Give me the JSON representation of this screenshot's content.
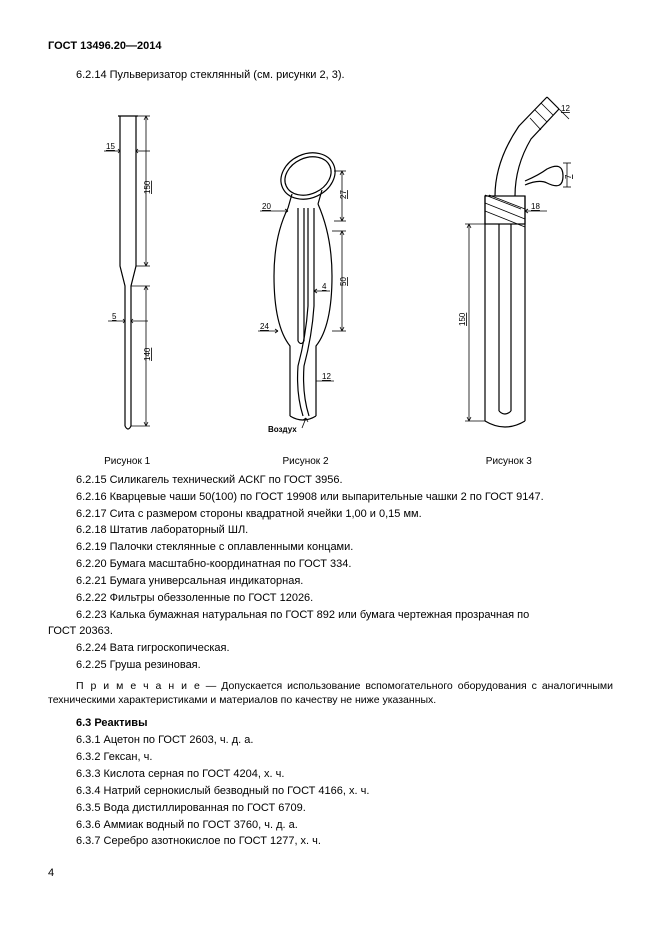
{
  "doc_header": "ГОСТ 13496.20—2014",
  "intro_clause": "6.2.14 Пульверизатор стеклянный (см. рисунки 2, 3).",
  "figures": {
    "fig1": {
      "caption": "Рисунок 1",
      "dims": {
        "d_top": "15",
        "h_top": "150",
        "d_bot": "5",
        "h_bot": "140"
      }
    },
    "fig2": {
      "caption": "Рисунок 2",
      "dims": {
        "d1": "20",
        "d2": "24",
        "d3": "12",
        "d4": "4",
        "h1": "27",
        "h2": "50",
        "air_label": "Воздух"
      }
    },
    "fig3": {
      "caption": "Рисунок 3",
      "dims": {
        "d_in": "18",
        "h": "150",
        "d_top": "12",
        "side": "7"
      }
    }
  },
  "clauses_upper": [
    "6.2.15 Силикагель технический АСКГ по ГОСТ 3956.",
    "6.2.16 Кварцевые чаши 50(100) по ГОСТ 19908 или выпарительные чашки 2 по ГОСТ 9147.",
    "6.2.17 Сита с размером стороны квадратной ячейки 1,00 и 0,15 мм.",
    "6.2.18 Штатив лабораторный ШЛ.",
    "6.2.19 Палочки стеклянные с оплавленными концами.",
    "6.2.20 Бумага масштабно-координатная по ГОСТ 334.",
    "6.2.21 Бумага универсальная индикаторная.",
    "6.2.22 Фильтры обеззоленные по ГОСТ 12026.",
    "6.2.23 Калька бумажная натуральная по ГОСТ 892 или бумага чертежная прозрачная по ГОСТ 20363.",
    "6.2.24 Вата гигроскопическая.",
    "6.2.25 Груша резиновая."
  ],
  "note_label": "П р и м е ч а н и е",
  "note_text": " — Допускается использование вспомогательного оборудования с аналогичными техническими характеристиками и материалов по качеству не ниже указанных.",
  "section63_title": "6.3 Реактивы",
  "clauses_lower": [
    "6.3.1 Ацетон по ГОСТ 2603, ч. д. а.",
    "6.3.2 Гексан, ч.",
    "6.3.3 Кислота серная по ГОСТ 4204, х. ч.",
    "6.3.4 Натрий сернокислый безводный по ГОСТ 4166, х. ч.",
    "6.3.5 Вода дистиллированная по ГОСТ 6709.",
    "6.3.6 Аммиак водный по ГОСТ 3760, ч. д. а.",
    "6.3.7 Серебро азотнокислое по ГОСТ 1277, х. ч."
  ],
  "page_number": "4"
}
